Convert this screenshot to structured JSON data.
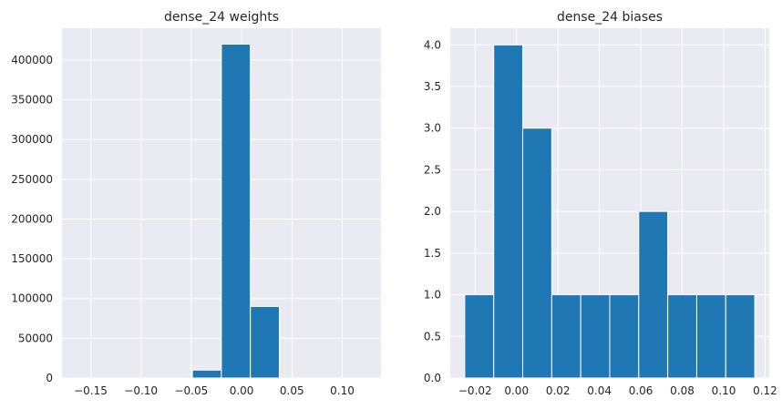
{
  "chart_data": [
    {
      "type": "bar",
      "title": "dense_24 weights",
      "xlabel": "",
      "ylabel": "",
      "grid": true,
      "xlim": [
        -0.1785,
        0.1385
      ],
      "ylim": [
        0,
        440000
      ],
      "xticks": [
        -0.15,
        -0.1,
        -0.05,
        0.0,
        0.05,
        0.1
      ],
      "xtick_labels": [
        "−0.15",
        "−0.10",
        "−0.05",
        "0.00",
        "0.05",
        "0.10"
      ],
      "yticks": [
        0,
        50000,
        100000,
        150000,
        200000,
        250000,
        300000,
        350000,
        400000
      ],
      "ytick_labels": [
        "0",
        "50000",
        "100000",
        "150000",
        "200000",
        "250000",
        "300000",
        "350000",
        "400000"
      ],
      "bins": [
        {
          "x0": -0.1641,
          "x1": -0.1353,
          "value": 0
        },
        {
          "x0": -0.1353,
          "x1": -0.1065,
          "value": 0
        },
        {
          "x0": -0.1065,
          "x1": -0.0777,
          "value": 0
        },
        {
          "x0": -0.0777,
          "x1": -0.0489,
          "value": 0
        },
        {
          "x0": -0.0489,
          "x1": -0.0201,
          "value": 10000
        },
        {
          "x0": -0.0201,
          "x1": 0.0087,
          "value": 420000
        },
        {
          "x0": 0.0087,
          "x1": 0.0375,
          "value": 90000
        },
        {
          "x0": 0.0375,
          "x1": 0.0663,
          "value": 0
        },
        {
          "x0": 0.0663,
          "x1": 0.0951,
          "value": 0
        },
        {
          "x0": 0.0951,
          "x1": 0.1239,
          "value": 0
        }
      ]
    },
    {
      "type": "bar",
      "title": "dense_24 biases",
      "xlabel": "",
      "ylabel": "",
      "grid": true,
      "xlim": [
        -0.032,
        0.122
      ],
      "ylim": [
        0,
        4.2
      ],
      "xticks": [
        -0.02,
        0.0,
        0.02,
        0.04,
        0.06,
        0.08,
        0.1,
        0.12
      ],
      "xtick_labels": [
        "−0.02",
        "0.00",
        "0.02",
        "0.04",
        "0.06",
        "0.08",
        "0.10",
        "0.12"
      ],
      "yticks": [
        0,
        0.5,
        1.0,
        1.5,
        2.0,
        2.5,
        3.0,
        3.5,
        4.0
      ],
      "ytick_labels": [
        "0.0",
        "0.5",
        "1.0",
        "1.5",
        "2.0",
        "2.5",
        "3.0",
        "3.5",
        "4.0"
      ],
      "bins": [
        {
          "x0": -0.025,
          "x1": -0.011,
          "value": 1
        },
        {
          "x0": -0.011,
          "x1": 0.003,
          "value": 4
        },
        {
          "x0": 0.003,
          "x1": 0.017,
          "value": 3
        },
        {
          "x0": 0.017,
          "x1": 0.031,
          "value": 1
        },
        {
          "x0": 0.031,
          "x1": 0.045,
          "value": 1
        },
        {
          "x0": 0.045,
          "x1": 0.059,
          "value": 1
        },
        {
          "x0": 0.059,
          "x1": 0.073,
          "value": 2
        },
        {
          "x0": 0.073,
          "x1": 0.087,
          "value": 1
        },
        {
          "x0": 0.087,
          "x1": 0.101,
          "value": 1
        },
        {
          "x0": 0.101,
          "x1": 0.115,
          "value": 1
        }
      ]
    }
  ],
  "colors": {
    "bar": "#1f77b4",
    "axes_background": "#eaeaf2",
    "grid": "#ffffff",
    "text": "#262626"
  }
}
